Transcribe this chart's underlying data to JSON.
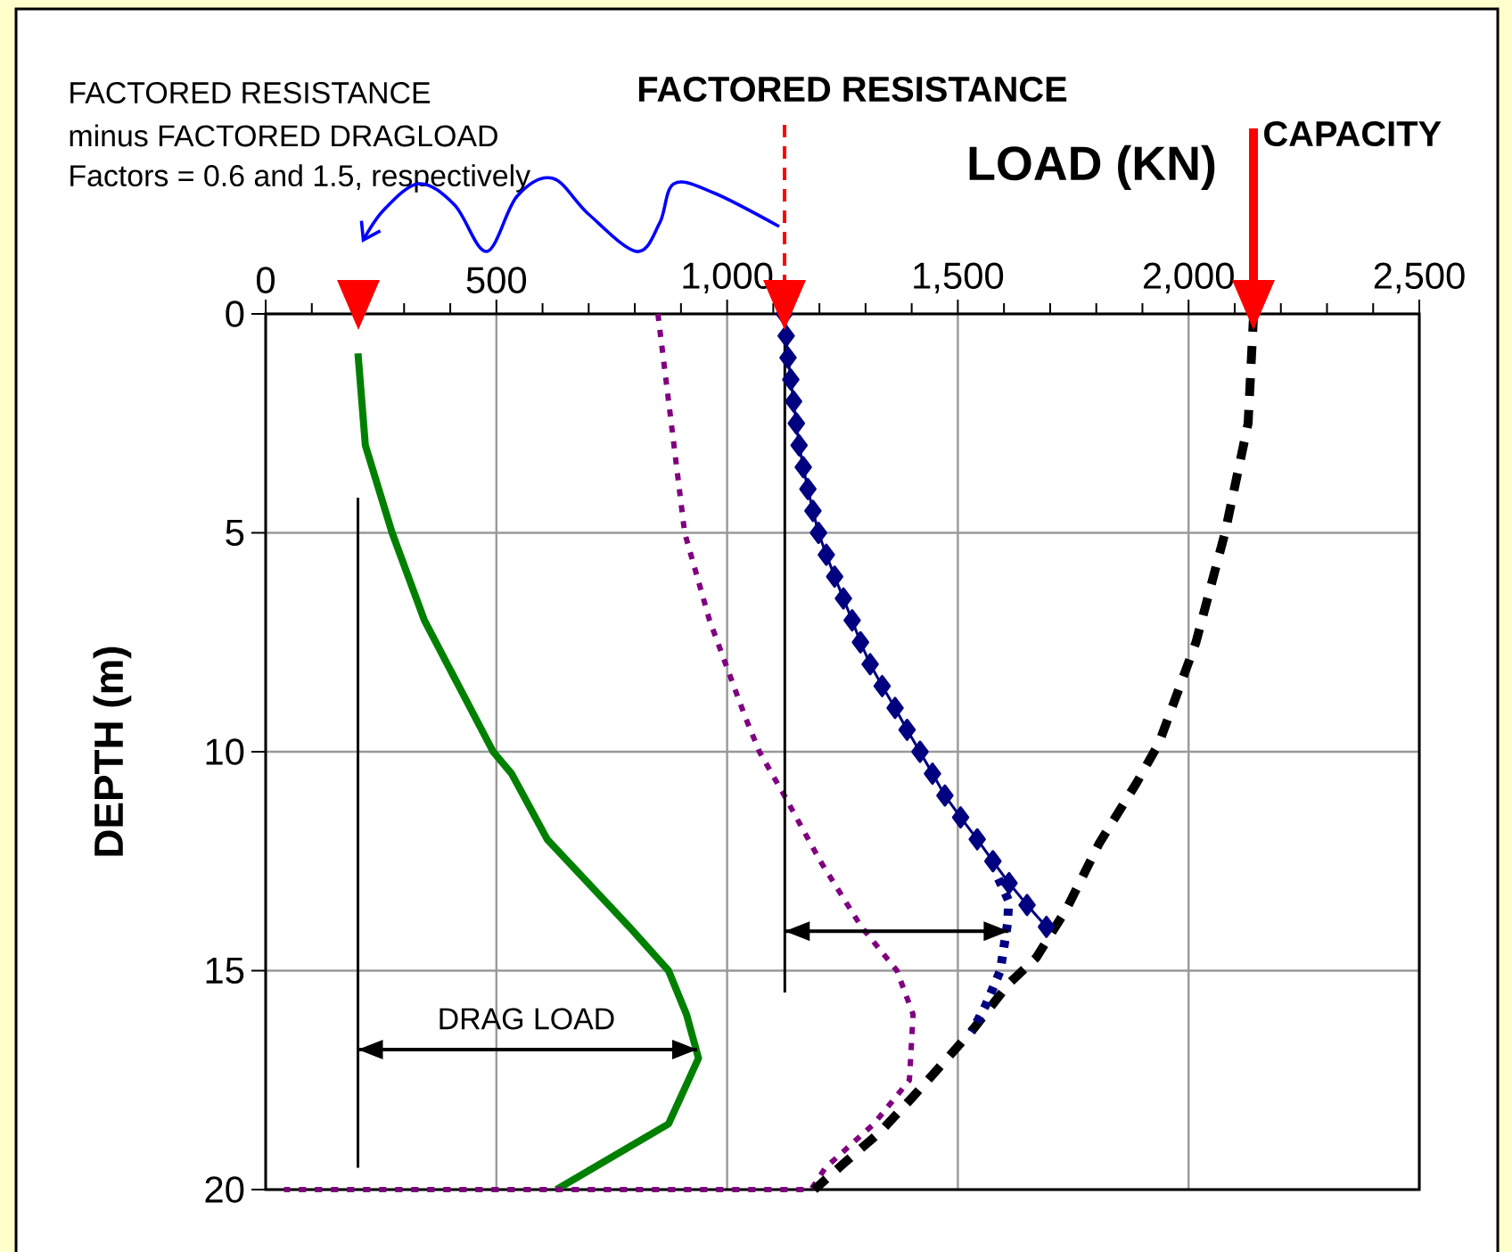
{
  "chart_data": {
    "type": "line",
    "xlabel": "LOAD (KN)",
    "ylabel": "DEPTH (m)",
    "xlim": [
      0,
      2500
    ],
    "ylim": [
      20,
      0
    ],
    "xticks": [
      0,
      500,
      {
        "value": 1000,
        "label": "1,000"
      },
      {
        "value": 1500,
        "label": "1,500"
      },
      {
        "value": 2000,
        "label": "2,000"
      },
      {
        "value": 2500,
        "label": "2,500"
      }
    ],
    "yticks": [
      0,
      5,
      10,
      15,
      20
    ],
    "grid": true,
    "series": [
      {
        "color": "#008000",
        "line_style": "solid",
        "marker": "none",
        "x": [
          200,
          216,
          274,
          344,
          493,
          533,
          610,
          788,
          873,
          912,
          938,
          873,
          630
        ],
        "values": [
          0.9,
          3,
          5,
          7,
          10,
          10.5,
          12,
          14,
          15,
          16,
          17,
          18.5,
          20
        ]
      },
      {
        "color": "#800080",
        "line_style": "dotted",
        "marker": "none",
        "x": [
          850,
          908,
          962,
          1039,
          1070,
          1124,
          1202,
          1291,
          1368,
          1403,
          1395,
          1318,
          1213,
          1182,
          40
        ],
        "values": [
          0,
          5,
          7,
          9.2,
          10,
          11,
          12.5,
          14,
          15,
          16,
          17.5,
          18.5,
          19.5,
          20,
          20
        ]
      },
      {
        "color": "#000080",
        "line_style": "solid",
        "marker": "diamond",
        "x": [
          1124,
          1128,
          1132,
          1138,
          1144,
          1150,
          1156,
          1165,
          1175,
          1186,
          1198,
          1215,
          1233,
          1252,
          1271,
          1289,
          1310,
          1336,
          1364,
          1390,
          1418,
          1445,
          1472,
          1506,
          1542,
          1576,
          1611,
          1650,
          1692
        ],
        "values": [
          0,
          0.5,
          1,
          1.5,
          2,
          2.5,
          3,
          3.5,
          4,
          4.5,
          5,
          5.5,
          6,
          6.5,
          7,
          7.5,
          8,
          8.5,
          9,
          9.5,
          10,
          10.5,
          11,
          11.5,
          12,
          12.5,
          13,
          13.5,
          14
        ]
      },
      {
        "color": "#000000",
        "line_style": "dashed",
        "marker": "none",
        "x": [
          2141,
          2129,
          2079,
          2016,
          1936,
          1888,
          1806,
          1735,
          1670,
          1610,
          1536,
          1469,
          1401,
          1330,
          1253,
          1189
        ],
        "values": [
          0,
          2.5,
          5,
          7.5,
          9.8,
          10.7,
          12.1,
          13.6,
          14.7,
          15.3,
          16.3,
          17.1,
          17.9,
          18.7,
          19.4,
          20
        ]
      },
      {
        "color": "#000080",
        "line_style": "dotted",
        "marker": "none",
        "x": [
          1588,
          1610,
          1608,
          1592,
          1560,
          1530
        ],
        "values": [
          12.9,
          13.4,
          13.9,
          15,
          15.8,
          16.4
        ]
      },
      {
        "color": "#000000",
        "line_style": "solid",
        "marker": "none",
        "x": [
          200,
          200
        ],
        "values": [
          4.2,
          19.5
        ]
      },
      {
        "color": "#000000",
        "line_style": "solid",
        "marker": "none",
        "x": [
          1125,
          1125
        ],
        "values": [
          0.5,
          15.5
        ]
      },
      {
        "color": "#000000",
        "line_style": "solid",
        "marker": "none",
        "x": [
          200,
          935
        ],
        "values": [
          16.8,
          16.8
        ]
      },
      {
        "color": "#000000",
        "line_style": "solid",
        "marker": "none",
        "x": [
          1125,
          1610
        ],
        "values": [
          14.1,
          14.1
        ]
      }
    ],
    "annotations": [
      "FACTORED RESISTANCE",
      "minus FACTORED DRAGLOAD",
      "Factors = 0.6 and 1.5, respectively",
      "FACTORED RESISTANCE",
      "CAPACITY",
      {
        "text": "DRAG LOAD",
        "x": 565,
        "y": 16.8
      }
    ]
  }
}
